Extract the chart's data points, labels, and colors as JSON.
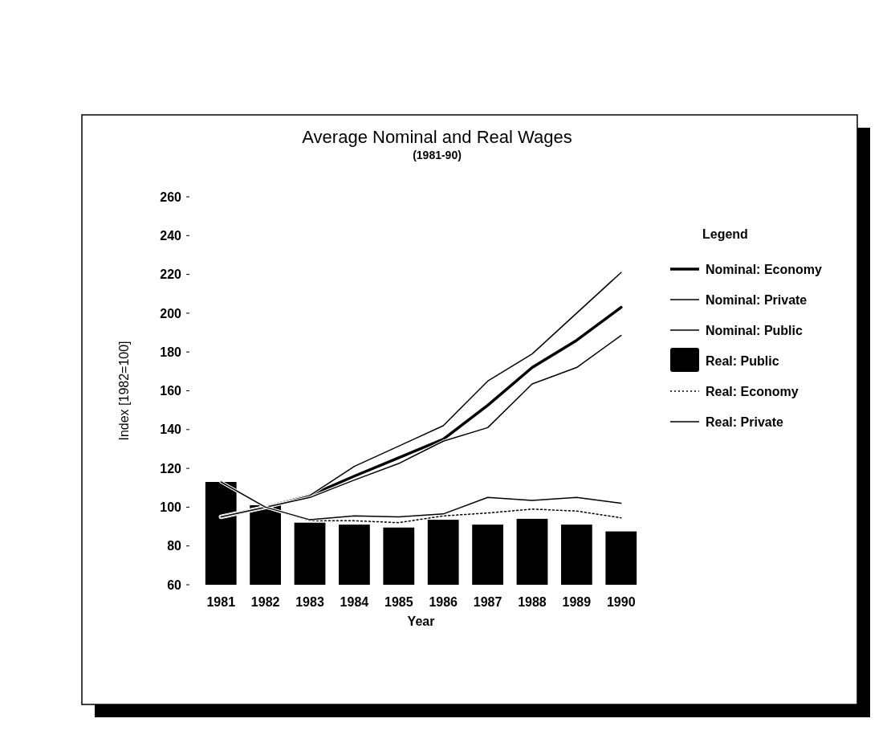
{
  "chart_data": {
    "type": "line",
    "title": "Average Nominal and Real Wages",
    "subtitle": "(1981-90)",
    "xlabel": "Year",
    "ylabel": "Index [1982=100]",
    "legend_title": "Legend",
    "legend": "right",
    "grid": false,
    "categories": [
      "1981",
      "1982",
      "1983",
      "1984",
      "1985",
      "1986",
      "1987",
      "1988",
      "1989",
      "1990"
    ],
    "ylim": [
      60,
      260
    ],
    "yticks": [
      60,
      80,
      100,
      120,
      140,
      160,
      180,
      200,
      220,
      240,
      260
    ],
    "series": [
      {
        "name": "Nominal: Economy",
        "color": "#000000",
        "values": [
          95,
          100,
          106,
          116,
          125.5,
          135,
          152.5,
          172,
          186,
          203
        ]
      },
      {
        "name": "Nominal: Private",
        "color": "#000000",
        "values": [
          95,
          100,
          106,
          121,
          131.5,
          142,
          165,
          179,
          200,
          221
        ]
      },
      {
        "name": "Nominal: Public",
        "color": "#000000",
        "values": [
          95,
          100,
          105,
          114,
          122.5,
          134,
          141,
          163.5,
          172,
          188.5
        ]
      },
      {
        "name": "Real: Public",
        "type": "bar",
        "color": "#000000",
        "values": [
          113,
          101,
          92,
          91,
          89.5,
          93.5,
          91,
          94,
          91,
          87.5
        ]
      },
      {
        "name": "Real: Economy",
        "color": "#000000",
        "line_style": "dotted",
        "values": [
          113,
          100,
          93,
          93,
          92,
          95.5,
          97,
          99,
          98,
          94.5
        ]
      },
      {
        "name": "Real: Private",
        "color": "#000000",
        "values": [
          113,
          100,
          93.5,
          95.5,
          95,
          96.5,
          105,
          103.5,
          105,
          102
        ]
      }
    ]
  }
}
